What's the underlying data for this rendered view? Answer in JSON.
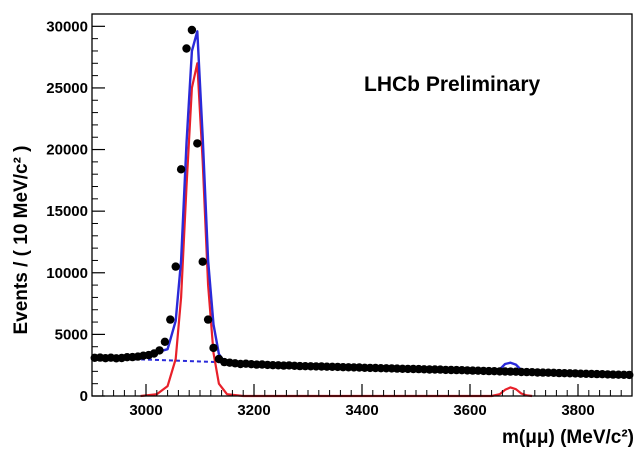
{
  "chart_data": {
    "type": "scatter",
    "annotation": "LHCb Preliminary",
    "xlabel": "m(μμ) (MeV/c²)",
    "ylabel": "Events / ( 10 MeV/c² )",
    "xlim": [
      2900,
      3900
    ],
    "ylim": [
      0,
      31000
    ],
    "xticks": [
      3000,
      3200,
      3400,
      3600,
      3800
    ],
    "yticks": [
      0,
      5000,
      10000,
      15000,
      20000,
      25000,
      30000
    ],
    "grid": false,
    "colors": {
      "data": "#000000",
      "total_fit": "#2a2ad9",
      "signal": "#e8202a",
      "background": "#2a2ad9"
    },
    "series": [
      {
        "role": "data-points",
        "x": [
          2905,
          2915,
          2925,
          2935,
          2945,
          2955,
          2965,
          2975,
          2985,
          2995,
          3005,
          3015,
          3025,
          3035,
          3045,
          3055,
          3065,
          3075,
          3085,
          3095,
          3105,
          3115,
          3125,
          3135,
          3145,
          3155,
          3165,
          3175,
          3185,
          3195,
          3205,
          3215,
          3225,
          3235,
          3245,
          3255,
          3265,
          3275,
          3285,
          3295,
          3305,
          3315,
          3325,
          3335,
          3345,
          3355,
          3365,
          3375,
          3385,
          3395,
          3405,
          3415,
          3425,
          3435,
          3445,
          3455,
          3465,
          3475,
          3485,
          3495,
          3505,
          3515,
          3525,
          3535,
          3545,
          3555,
          3565,
          3575,
          3585,
          3595,
          3605,
          3615,
          3625,
          3635,
          3645,
          3655,
          3665,
          3675,
          3685,
          3695,
          3705,
          3715,
          3725,
          3735,
          3745,
          3755,
          3765,
          3775,
          3785,
          3795,
          3805,
          3815,
          3825,
          3835,
          3845,
          3855,
          3865,
          3875,
          3885,
          3895
        ],
        "y": [
          3100,
          3120,
          3070,
          3110,
          3060,
          3080,
          3150,
          3160,
          3200,
          3270,
          3320,
          3450,
          3700,
          4400,
          6200,
          10500,
          18400,
          28200,
          29700,
          20500,
          10900,
          6200,
          3900,
          3000,
          2750,
          2700,
          2650,
          2600,
          2620,
          2580,
          2550,
          2560,
          2520,
          2500,
          2490,
          2470,
          2480,
          2450,
          2430,
          2420,
          2410,
          2400,
          2390,
          2380,
          2370,
          2360,
          2340,
          2330,
          2320,
          2310,
          2290,
          2280,
          2270,
          2260,
          2250,
          2240,
          2220,
          2210,
          2200,
          2190,
          2180,
          2170,
          2150,
          2150,
          2140,
          2120,
          2110,
          2100,
          2090,
          2080,
          2060,
          2050,
          2040,
          2020,
          2010,
          2000,
          1990,
          1980,
          1970,
          1950,
          1940,
          1930,
          1910,
          1900,
          1890,
          1880,
          1860,
          1850,
          1840,
          1830,
          1810,
          1800,
          1790,
          1780,
          1770,
          1750,
          1740,
          1730,
          1720,
          1710
        ]
      },
      {
        "role": "total-fit",
        "x": [
          2900,
          2950,
          3000,
          3040,
          3055,
          3065,
          3075,
          3085,
          3095,
          3105,
          3115,
          3125,
          3135,
          3145,
          3160,
          3200,
          3300,
          3400,
          3500,
          3600,
          3640,
          3655,
          3665,
          3675,
          3685,
          3695,
          3705,
          3720,
          3800,
          3900
        ],
        "y": [
          3100,
          3080,
          3300,
          3800,
          6100,
          11000,
          20500,
          28000,
          29600,
          21000,
          11000,
          5800,
          3400,
          2800,
          2700,
          2550,
          2420,
          2300,
          2180,
          2040,
          1990,
          2150,
          2600,
          2700,
          2550,
          2100,
          1930,
          1900,
          1800,
          1680
        ]
      },
      {
        "role": "signal",
        "x": [
          2990,
          3020,
          3040,
          3055,
          3065,
          3075,
          3085,
          3095,
          3105,
          3115,
          3125,
          3135,
          3150,
          3180,
          3640,
          3655,
          3665,
          3675,
          3685,
          3695,
          3705,
          3715
        ],
        "y": [
          0,
          150,
          800,
          3000,
          8000,
          17000,
          25000,
          27000,
          19000,
          9000,
          3500,
          1000,
          150,
          0,
          0,
          150,
          500,
          700,
          550,
          200,
          50,
          0
        ]
      },
      {
        "role": "background",
        "x": [
          2900,
          3000,
          3100,
          3200,
          3400,
          3600,
          3800,
          3900
        ],
        "y": [
          3100,
          2950,
          2800,
          2650,
          2400,
          2120,
          1860,
          1700
        ]
      }
    ]
  }
}
